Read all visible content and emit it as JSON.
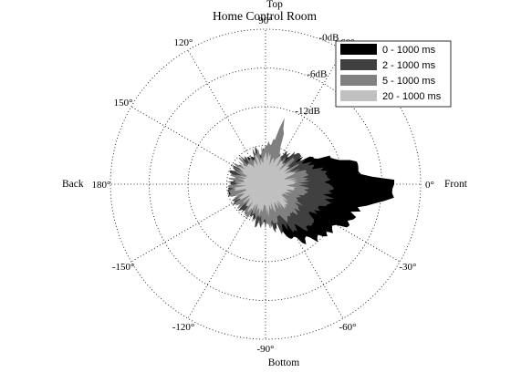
{
  "chart_data": {
    "type": "polar-area",
    "title": "Home Control Room",
    "direction_labels": {
      "top": "Top",
      "bottom": "Bottom",
      "left": "Back",
      "right": "Front"
    },
    "angle_ticks": [
      {
        "deg": 0,
        "label": "0°"
      },
      {
        "deg": -30,
        "label": "-30°"
      },
      {
        "deg": -60,
        "label": "-60°"
      },
      {
        "deg": -90,
        "label": "-90°"
      },
      {
        "deg": -120,
        "label": "-120°"
      },
      {
        "deg": -150,
        "label": "-150°"
      },
      {
        "deg": 180,
        "label": "180°"
      },
      {
        "deg": 150,
        "label": "150°"
      },
      {
        "deg": 120,
        "label": "120°"
      },
      {
        "deg": 90,
        "label": "90°"
      },
      {
        "deg": 60,
        "label": "60°"
      }
    ],
    "radial_ticks": [
      {
        "db": 0,
        "label": "-0dB"
      },
      {
        "db": -6,
        "label": "-6dB"
      },
      {
        "db": -12,
        "label": "-12dB"
      }
    ],
    "rlim_db": [
      -24,
      0
    ],
    "grid": true,
    "legend": {
      "placement": "top-right"
    },
    "series": [
      {
        "name": "0 - 1000 ms",
        "color": "#000000",
        "profile": [
          {
            "deg": 0,
            "db": -3
          },
          {
            "deg": 4,
            "db": -7
          },
          {
            "deg": 8,
            "db": -10
          },
          {
            "deg": 12,
            "db": -9
          },
          {
            "deg": 16,
            "db": -11
          },
          {
            "deg": 20,
            "db": -13
          },
          {
            "deg": 25,
            "db": -14
          },
          {
            "deg": 30,
            "db": -16
          },
          {
            "deg": 40,
            "db": -18
          },
          {
            "deg": 50,
            "db": -19
          },
          {
            "deg": 60,
            "db": -19
          },
          {
            "deg": 70,
            "db": -20
          },
          {
            "deg": 80,
            "db": -19
          },
          {
            "deg": 90,
            "db": -19
          },
          {
            "deg": 100,
            "db": -19
          },
          {
            "deg": 120,
            "db": -19
          },
          {
            "deg": 140,
            "db": -20
          },
          {
            "deg": 160,
            "db": -19
          },
          {
            "deg": 180,
            "db": -19
          },
          {
            "deg": 200,
            "db": -19
          },
          {
            "deg": 220,
            "db": -19
          },
          {
            "deg": 240,
            "db": -19
          },
          {
            "deg": 260,
            "db": -19
          },
          {
            "deg": 280,
            "db": -18
          },
          {
            "deg": 290,
            "db": -17
          },
          {
            "deg": 300,
            "db": -14
          },
          {
            "deg": 310,
            "db": -13
          },
          {
            "deg": 320,
            "db": -12
          },
          {
            "deg": 330,
            "db": -11
          },
          {
            "deg": 340,
            "db": -10
          },
          {
            "deg": 348,
            "db": -8
          },
          {
            "deg": 354,
            "db": -5
          }
        ]
      },
      {
        "name": "2 - 1000 ms",
        "color": "#404040",
        "profile": [
          {
            "deg": 0,
            "db": -14
          },
          {
            "deg": 15,
            "db": -15
          },
          {
            "deg": 30,
            "db": -17
          },
          {
            "deg": 45,
            "db": -18
          },
          {
            "deg": 60,
            "db": -19
          },
          {
            "deg": 75,
            "db": -19
          },
          {
            "deg": 90,
            "db": -19
          },
          {
            "deg": 105,
            "db": -19
          },
          {
            "deg": 120,
            "db": -19
          },
          {
            "deg": 135,
            "db": -19
          },
          {
            "deg": 150,
            "db": -19
          },
          {
            "deg": 165,
            "db": -19
          },
          {
            "deg": 180,
            "db": -19
          },
          {
            "deg": 195,
            "db": -19
          },
          {
            "deg": 210,
            "db": -19
          },
          {
            "deg": 225,
            "db": -19
          },
          {
            "deg": 240,
            "db": -19
          },
          {
            "deg": 255,
            "db": -18
          },
          {
            "deg": 270,
            "db": -18
          },
          {
            "deg": 285,
            "db": -17
          },
          {
            "deg": 300,
            "db": -16
          },
          {
            "deg": 315,
            "db": -15
          },
          {
            "deg": 330,
            "db": -15
          },
          {
            "deg": 345,
            "db": -14
          }
        ]
      },
      {
        "name": "5 - 1000 ms",
        "color": "#808080",
        "profile": [
          {
            "deg": 0,
            "db": -18
          },
          {
            "deg": 15,
            "db": -18
          },
          {
            "deg": 30,
            "db": -19
          },
          {
            "deg": 45,
            "db": -19
          },
          {
            "deg": 60,
            "db": -19
          },
          {
            "deg": 68,
            "db": -17
          },
          {
            "deg": 74,
            "db": -14
          },
          {
            "deg": 78,
            "db": -17
          },
          {
            "deg": 90,
            "db": -19
          },
          {
            "deg": 105,
            "db": -19
          },
          {
            "deg": 120,
            "db": -19
          },
          {
            "deg": 135,
            "db": -19
          },
          {
            "deg": 150,
            "db": -19
          },
          {
            "deg": 165,
            "db": -19
          },
          {
            "deg": 180,
            "db": -19
          },
          {
            "deg": 195,
            "db": -19
          },
          {
            "deg": 210,
            "db": -19
          },
          {
            "deg": 225,
            "db": -19
          },
          {
            "deg": 240,
            "db": -19
          },
          {
            "deg": 255,
            "db": -19
          },
          {
            "deg": 270,
            "db": -18
          },
          {
            "deg": 285,
            "db": -18
          },
          {
            "deg": 300,
            "db": -18
          },
          {
            "deg": 315,
            "db": -17
          },
          {
            "deg": 330,
            "db": -18
          },
          {
            "deg": 345,
            "db": -18
          }
        ]
      },
      {
        "name": "20 - 1000 ms",
        "color": "#c0c0c0",
        "profile": [
          {
            "deg": 0,
            "db": -20
          },
          {
            "deg": 30,
            "db": -20
          },
          {
            "deg": 60,
            "db": -20
          },
          {
            "deg": 90,
            "db": -20
          },
          {
            "deg": 120,
            "db": -20
          },
          {
            "deg": 150,
            "db": -20
          },
          {
            "deg": 180,
            "db": -20
          },
          {
            "deg": 210,
            "db": -20
          },
          {
            "deg": 240,
            "db": -20
          },
          {
            "deg": 270,
            "db": -20
          },
          {
            "deg": 300,
            "db": -20
          },
          {
            "deg": 330,
            "db": -20
          }
        ]
      }
    ]
  }
}
